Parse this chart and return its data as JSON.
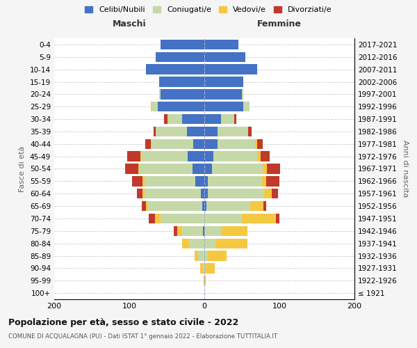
{
  "age_groups": [
    "100+",
    "95-99",
    "90-94",
    "85-89",
    "80-84",
    "75-79",
    "70-74",
    "65-69",
    "60-64",
    "55-59",
    "50-54",
    "45-49",
    "40-44",
    "35-39",
    "30-34",
    "25-29",
    "20-24",
    "15-19",
    "10-14",
    "5-9",
    "0-4"
  ],
  "birth_years": [
    "≤ 1921",
    "1922-1926",
    "1927-1931",
    "1932-1936",
    "1937-1941",
    "1942-1946",
    "1947-1951",
    "1952-1956",
    "1957-1961",
    "1962-1966",
    "1967-1971",
    "1972-1976",
    "1977-1981",
    "1982-1986",
    "1987-1991",
    "1992-1996",
    "1997-2001",
    "2002-2006",
    "2007-2011",
    "2012-2016",
    "2017-2021"
  ],
  "maschi": {
    "celibi": [
      0,
      0,
      0,
      0,
      0,
      2,
      0,
      3,
      5,
      12,
      16,
      22,
      15,
      23,
      30,
      62,
      58,
      60,
      78,
      65,
      58
    ],
    "coniugati": [
      0,
      0,
      2,
      8,
      20,
      28,
      58,
      72,
      75,
      68,
      70,
      62,
      55,
      42,
      18,
      8,
      2,
      0,
      0,
      0,
      0
    ],
    "vedovi": [
      0,
      1,
      4,
      5,
      10,
      6,
      8,
      3,
      2,
      2,
      2,
      1,
      1,
      0,
      1,
      1,
      0,
      0,
      0,
      0,
      0
    ],
    "divorziati": [
      0,
      0,
      0,
      0,
      0,
      5,
      8,
      5,
      8,
      14,
      18,
      18,
      8,
      3,
      5,
      0,
      0,
      0,
      0,
      0,
      0
    ]
  },
  "femmine": {
    "nubili": [
      0,
      0,
      0,
      0,
      0,
      0,
      0,
      3,
      5,
      5,
      10,
      12,
      18,
      18,
      22,
      52,
      50,
      52,
      70,
      55,
      45
    ],
    "coniugate": [
      0,
      0,
      2,
      5,
      15,
      22,
      50,
      58,
      75,
      72,
      68,
      58,
      50,
      40,
      18,
      8,
      2,
      0,
      0,
      0,
      0
    ],
    "vedove": [
      0,
      2,
      12,
      25,
      42,
      35,
      45,
      18,
      10,
      5,
      5,
      5,
      2,
      0,
      0,
      0,
      0,
      0,
      0,
      0,
      0
    ],
    "divorziate": [
      0,
      0,
      0,
      0,
      0,
      0,
      5,
      3,
      8,
      18,
      18,
      12,
      8,
      5,
      3,
      0,
      0,
      0,
      0,
      0,
      0
    ]
  },
  "colors": {
    "celibi_nubili": "#4472C4",
    "coniugati": "#c5d9a8",
    "vedovi": "#f5c842",
    "divorziati": "#c0392b"
  },
  "xlim": [
    -200,
    200
  ],
  "xticks": [
    -200,
    -100,
    0,
    100,
    200
  ],
  "xticklabels": [
    "200",
    "100",
    "0",
    "100",
    "200"
  ],
  "title": "Popolazione per età, sesso e stato civile - 2022",
  "subtitle": "COMUNE DI ACQUALAGNA (PU) - Dati ISTAT 1° gennaio 2022 - Elaborazione TUTTITALIA.IT",
  "ylabel_left": "Fasce di età",
  "ylabel_right": "Anni di nascita",
  "legend_labels": [
    "Celibi/Nubili",
    "Coniugati/e",
    "Vedovi/e",
    "Divorziati/e"
  ],
  "maschi_label": "Maschi",
  "femmine_label": "Femmine",
  "bg_color": "#f5f5f5",
  "plot_bg_color": "#ffffff"
}
